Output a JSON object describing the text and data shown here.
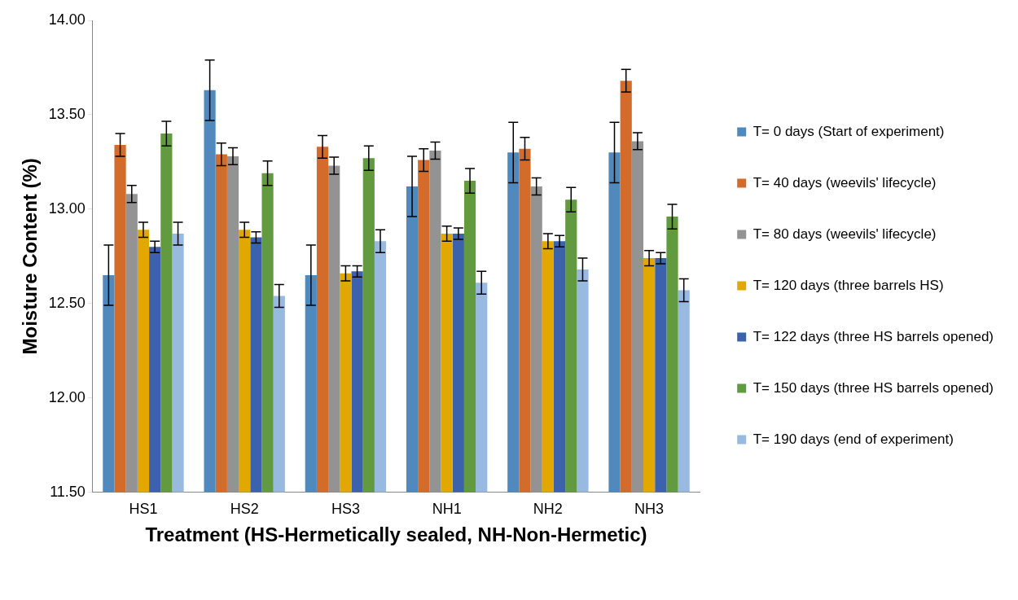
{
  "chart_data": {
    "type": "bar",
    "xlabel": "Treatment (HS-Hermetically sealed, NH-Non-Hermetic)",
    "ylabel": "Moisture Content (%)",
    "categories": [
      "HS1",
      "HS2",
      "HS3",
      "NH1",
      "NH2",
      "NH3"
    ],
    "series": [
      {
        "name": "T= 0 days (Start of experiment)",
        "color": "#4f89bd",
        "values": [
          12.65,
          13.63,
          12.65,
          13.12,
          13.3,
          13.3
        ],
        "errors": [
          0.16,
          0.16,
          0.16,
          0.16,
          0.16,
          0.16
        ]
      },
      {
        "name": "T= 40 days (weevils' lifecycle)",
        "color": "#d36c2b",
        "values": [
          13.34,
          13.29,
          13.33,
          13.26,
          13.32,
          13.68
        ],
        "errors": [
          0.06,
          0.06,
          0.06,
          0.06,
          0.06,
          0.06
        ]
      },
      {
        "name": "T= 80 days (weevils' lifecycle)",
        "color": "#939393",
        "values": [
          13.08,
          13.28,
          13.23,
          13.31,
          13.12,
          13.36
        ],
        "errors": [
          0.045,
          0.045,
          0.045,
          0.045,
          0.045,
          0.045
        ]
      },
      {
        "name": "T= 120 days (three barrels HS)",
        "color": "#e0a800",
        "values": [
          12.89,
          12.89,
          12.66,
          12.87,
          12.83,
          12.74
        ],
        "errors": [
          0.04,
          0.04,
          0.04,
          0.04,
          0.04,
          0.04
        ]
      },
      {
        "name": "T= 122 days (three HS barrels opened)",
        "color": "#3d62ad",
        "values": [
          12.8,
          12.85,
          12.67,
          12.87,
          12.83,
          12.74
        ],
        "errors": [
          0.03,
          0.03,
          0.03,
          0.03,
          0.03,
          0.03
        ]
      },
      {
        "name": "T= 150 days (three HS barrels opened)",
        "color": "#629a3f",
        "values": [
          13.4,
          13.19,
          13.27,
          13.15,
          13.05,
          12.96
        ],
        "errors": [
          0.065,
          0.065,
          0.065,
          0.065,
          0.065,
          0.065
        ]
      },
      {
        "name": "T= 190 days (end of experiment)",
        "color": "#98b9e0",
        "values": [
          12.87,
          12.54,
          12.83,
          12.61,
          12.68,
          12.57
        ],
        "errors": [
          0.06,
          0.06,
          0.06,
          0.06,
          0.06,
          0.06
        ]
      }
    ],
    "ylim": [
      11.5,
      14
    ],
    "yticks": [
      {
        "value": 11.5,
        "label": "11.50"
      },
      {
        "value": 12,
        "label": "12.00"
      },
      {
        "value": 12.5,
        "label": "12.50"
      },
      {
        "value": 13,
        "label": "13.00"
      },
      {
        "value": 13.5,
        "label": "13.50"
      },
      {
        "value": 14,
        "label": "14.00"
      }
    ],
    "grid": false,
    "legend": "right"
  }
}
